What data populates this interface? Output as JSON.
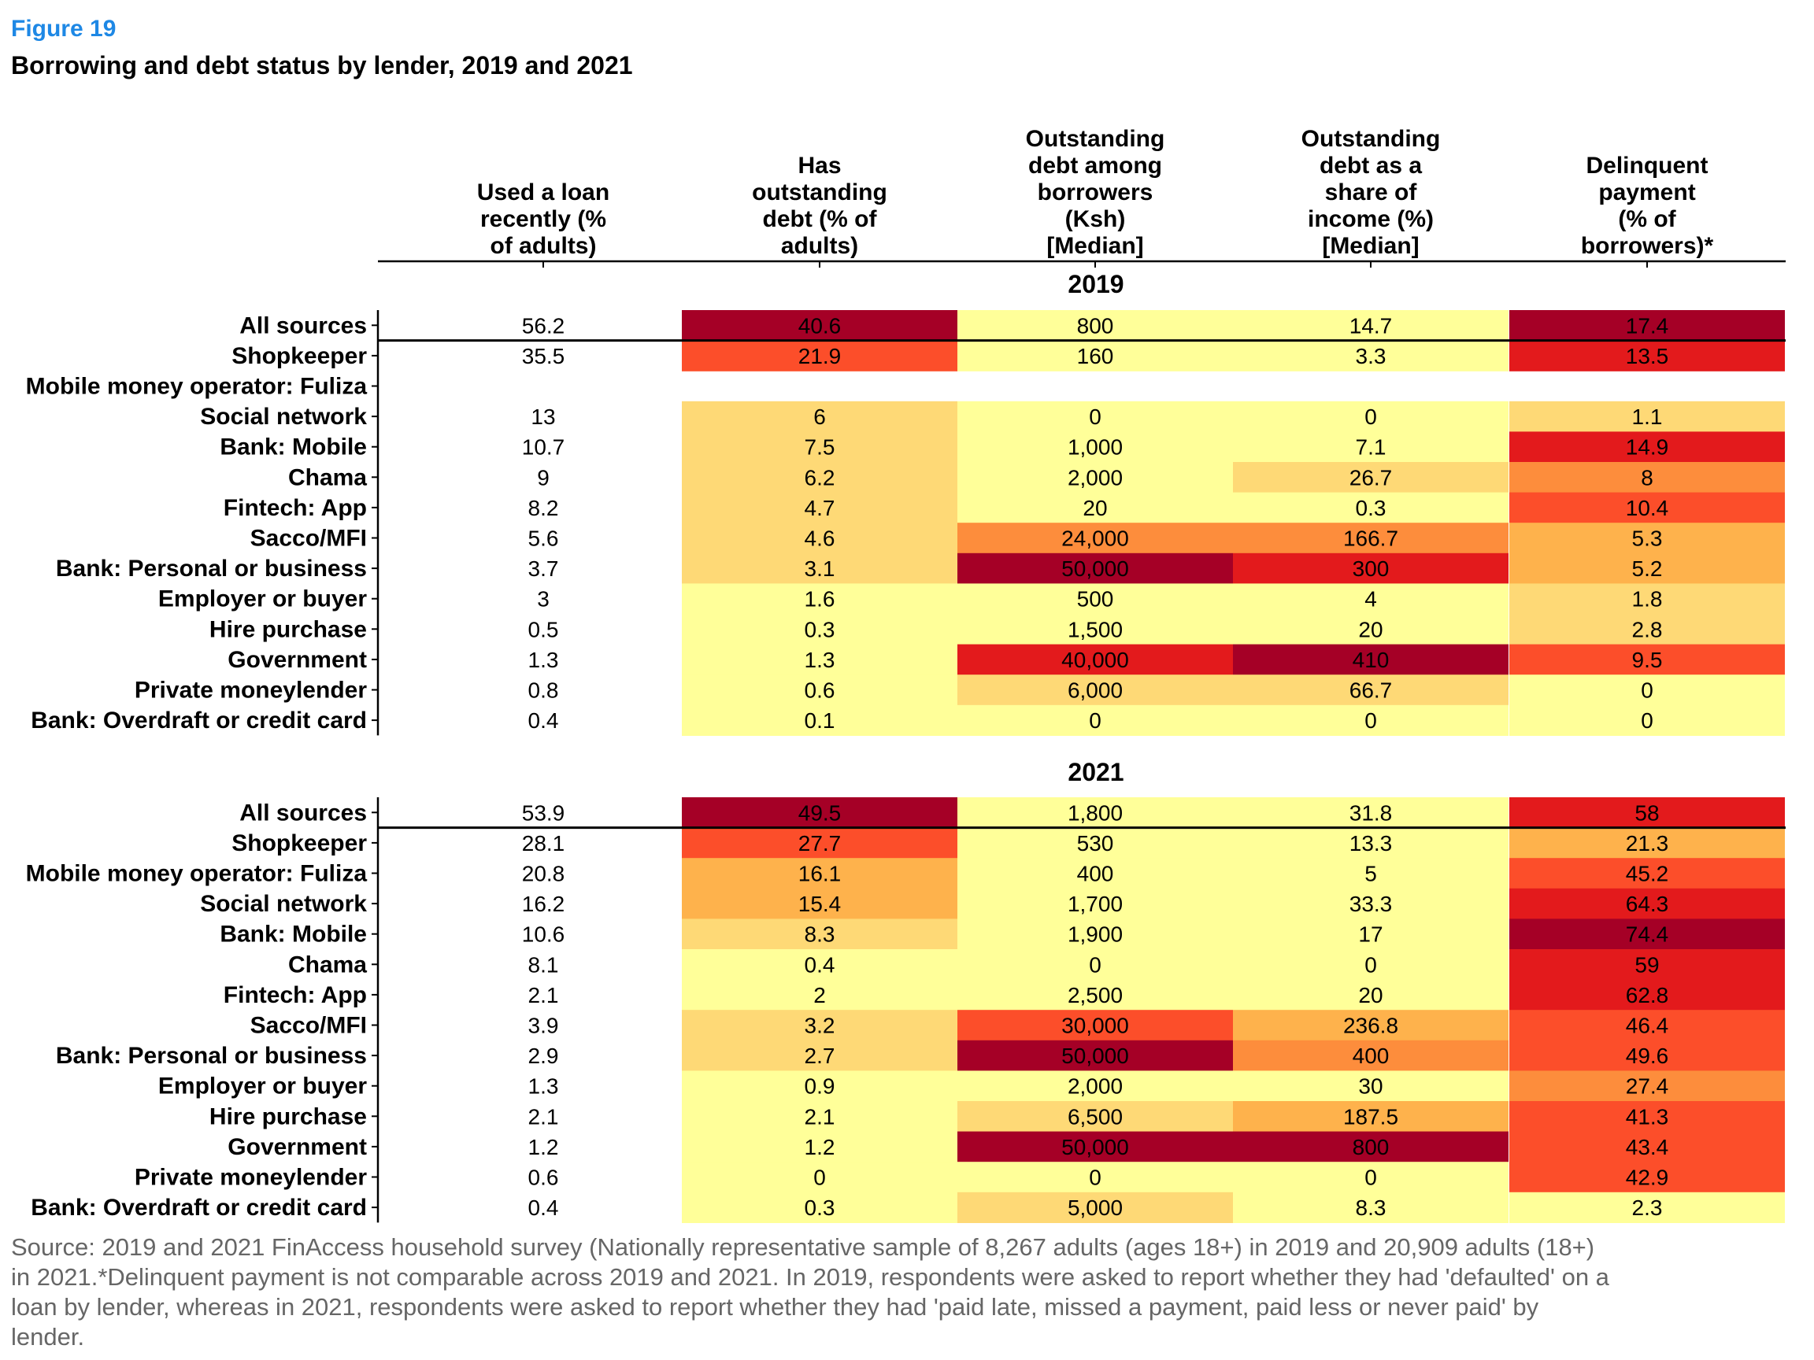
{
  "figure_label": "Figure 19",
  "title": "Borrowing and debt status by lender, 2019 and 2021",
  "source": "Source: 2019 and 2021 FinAccess household survey (Nationally representative sample of 8,267 adults (ages 18+) in 2019 and 20,909 adults (18+) in 2021.*Delinquent payment is not comparable across 2019 and 2021. In 2019, respondents were asked to report whether they had 'defaulted' on a loan by lender, whereas in 2021, respondents were asked to report whether they had 'paid late, missed a payment, paid less or never paid' by lender.",
  "chart_data": {
    "type": "heatmap",
    "columns": [
      [
        "Used a loan",
        "recently (%",
        "of adults)"
      ],
      [
        "Has",
        "outstanding",
        "debt (% of",
        "adults)"
      ],
      [
        "Outstanding",
        "debt among",
        "borrowers",
        "(Ksh)",
        "[Median]"
      ],
      [
        "Outstanding",
        "debt as a",
        "share of",
        "income (%)",
        "[Median]"
      ],
      [
        "Delinquent",
        "payment",
        "(% of",
        "borrowers)*"
      ]
    ],
    "rows": [
      "All sources",
      "Shopkeeper",
      "Mobile money operator: Fuliza",
      "Social network",
      "Bank: Mobile",
      "Chama",
      "Fintech: App",
      "Sacco/MFI",
      "Bank: Personal or business",
      "Employer or buyer",
      "Hire purchase",
      "Government",
      "Private moneylender",
      "Bank: Overdraft or credit card"
    ],
    "panels": [
      {
        "year": "2019",
        "values": [
          [
            "56.2",
            "40.6",
            "800",
            "14.7",
            "17.4"
          ],
          [
            "35.5",
            "21.9",
            "160",
            "3.3",
            "13.5"
          ],
          [
            "",
            "",
            "",
            "",
            ""
          ],
          [
            "13",
            "6",
            "0",
            "0",
            "1.1"
          ],
          [
            "10.7",
            "7.5",
            "1,000",
            "7.1",
            "14.9"
          ],
          [
            "9",
            "6.2",
            "2,000",
            "26.7",
            "8"
          ],
          [
            "8.2",
            "4.7",
            "20",
            "0.3",
            "10.4"
          ],
          [
            "5.6",
            "4.6",
            "24,000",
            "166.7",
            "5.3"
          ],
          [
            "3.7",
            "3.1",
            "50,000",
            "300",
            "5.2"
          ],
          [
            "3",
            "1.6",
            "500",
            "4",
            "1.8"
          ],
          [
            "0.5",
            "0.3",
            "1,500",
            "20",
            "2.8"
          ],
          [
            "1.3",
            "1.3",
            "40,000",
            "410",
            "9.5"
          ],
          [
            "0.8",
            "0.6",
            "6,000",
            "66.7",
            "0"
          ],
          [
            "0.4",
            "0.1",
            "0",
            "0",
            "0"
          ]
        ]
      },
      {
        "year": "2021",
        "values": [
          [
            "53.9",
            "49.5",
            "1,800",
            "31.8",
            "58"
          ],
          [
            "28.1",
            "27.7",
            "530",
            "13.3",
            "21.3"
          ],
          [
            "20.8",
            "16.1",
            "400",
            "5",
            "45.2"
          ],
          [
            "16.2",
            "15.4",
            "1,700",
            "33.3",
            "64.3"
          ],
          [
            "10.6",
            "8.3",
            "1,900",
            "17",
            "74.4"
          ],
          [
            "8.1",
            "0.4",
            "0",
            "0",
            "59"
          ],
          [
            "2.1",
            "2",
            "2,500",
            "20",
            "62.8"
          ],
          [
            "3.9",
            "3.2",
            "30,000",
            "236.8",
            "46.4"
          ],
          [
            "2.9",
            "2.7",
            "50,000",
            "400",
            "49.6"
          ],
          [
            "1.3",
            "0.9",
            "2,000",
            "30",
            "27.4"
          ],
          [
            "2.1",
            "2.1",
            "6,500",
            "187.5",
            "41.3"
          ],
          [
            "1.2",
            "1.2",
            "50,000",
            "800",
            "43.4"
          ],
          [
            "0.6",
            "0",
            "0",
            "0",
            "42.9"
          ],
          [
            "0.4",
            "0.3",
            "5,000",
            "8.3",
            "2.3"
          ]
        ]
      }
    ],
    "color_scale": [
      "#ffff99",
      "#fed976",
      "#feb24c",
      "#fd8d3c",
      "#fc4e2a",
      "#e31a1c",
      "#a50026"
    ],
    "shaded_columns": [
      1,
      2,
      3,
      4
    ]
  }
}
